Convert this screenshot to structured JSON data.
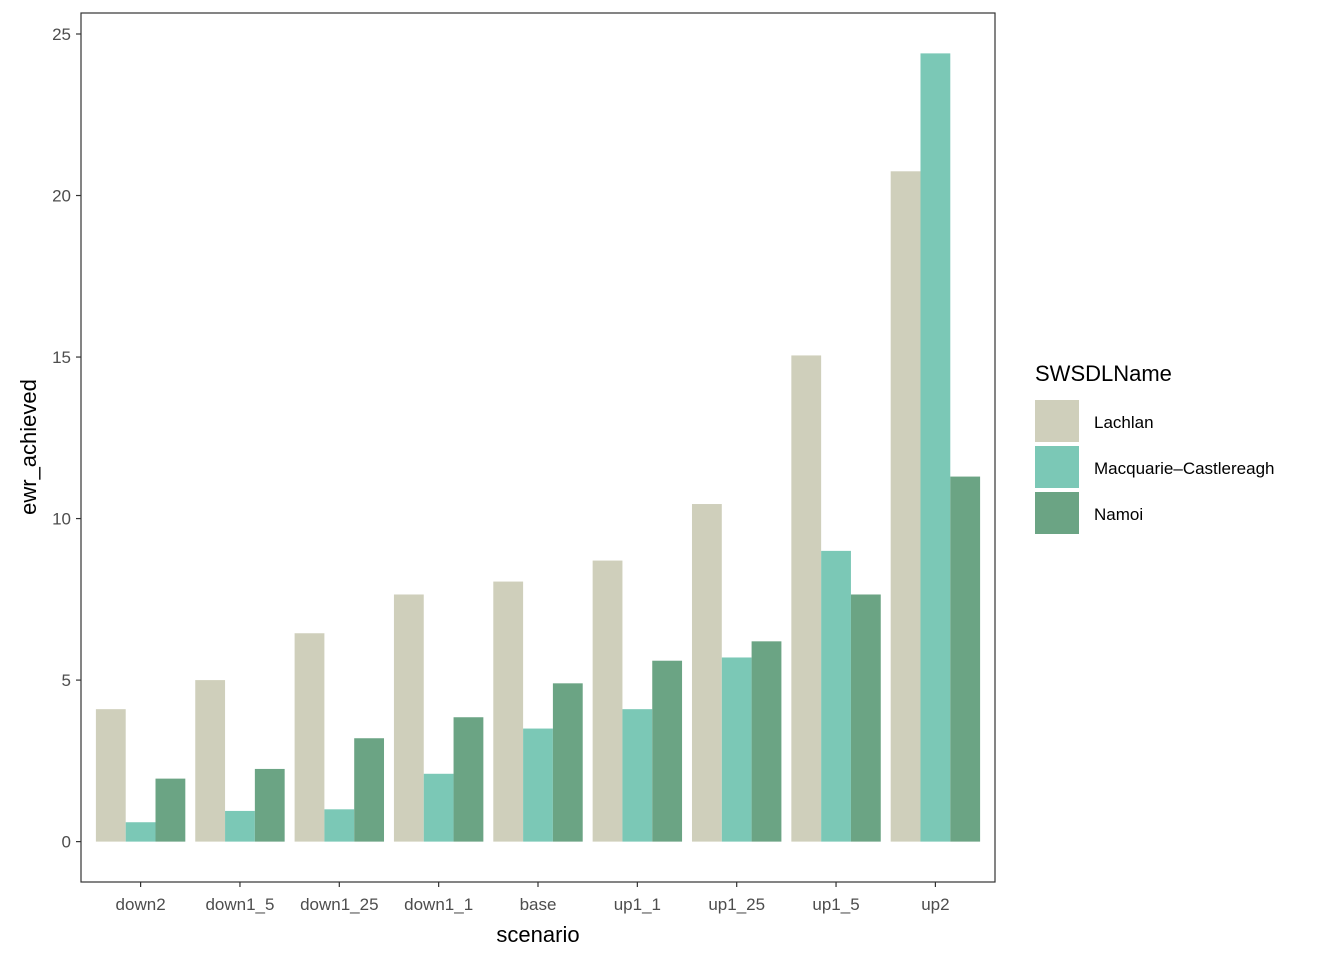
{
  "chart_data": {
    "type": "bar",
    "categories": [
      "down2",
      "down1_5",
      "down1_25",
      "down1_1",
      "base",
      "up1_1",
      "up1_25",
      "up1_5",
      "up2"
    ],
    "series": [
      {
        "name": "Lachlan",
        "color": "#cfcfbb",
        "values": [
          4.1,
          5.0,
          6.45,
          7.65,
          8.05,
          8.7,
          10.45,
          15.05,
          20.75
        ]
      },
      {
        "name": "Macquarie–Castlereagh",
        "color": "#7bc8b6",
        "values": [
          0.6,
          0.95,
          1.0,
          2.1,
          3.5,
          4.1,
          5.7,
          9.0,
          24.4
        ]
      },
      {
        "name": "Namoi",
        "color": "#6ba484",
        "values": [
          1.95,
          2.25,
          3.2,
          3.85,
          4.9,
          5.6,
          6.2,
          7.65,
          11.3
        ]
      }
    ],
    "title": "",
    "xlabel": "scenario",
    "ylabel": "ewr_achieved",
    "ylim": [
      -1.25,
      25.65
    ],
    "yticks": [
      0,
      5,
      10,
      15,
      20,
      25
    ],
    "legend": {
      "title": "SWSDLName",
      "position": "right"
    },
    "grid": false
  }
}
